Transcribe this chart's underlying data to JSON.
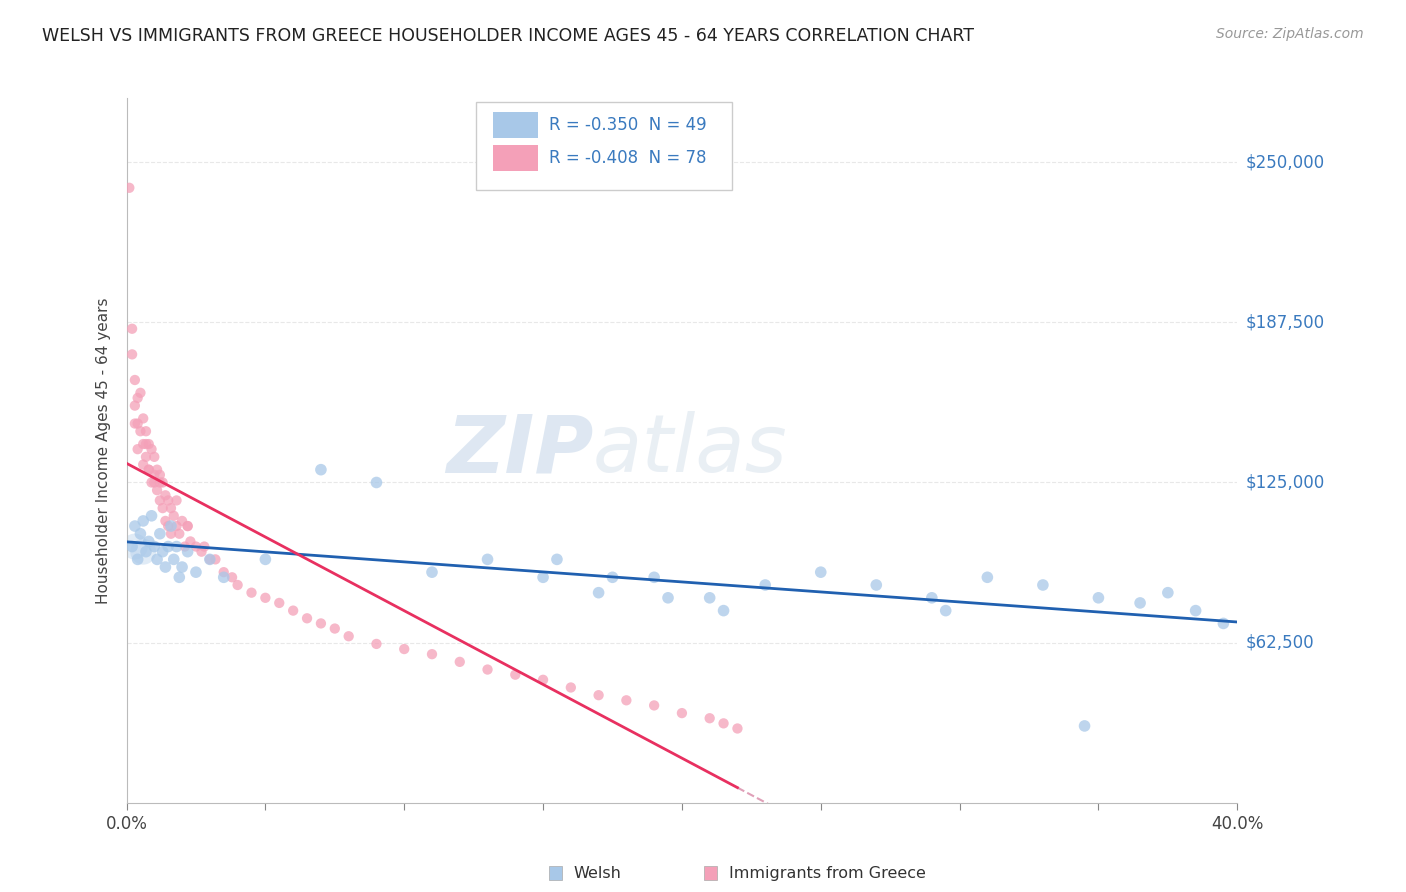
{
  "title": "WELSH VS IMMIGRANTS FROM GREECE HOUSEHOLDER INCOME AGES 45 - 64 YEARS CORRELATION CHART",
  "source": "Source: ZipAtlas.com",
  "ylabel": "Householder Income Ages 45 - 64 years",
  "ytick_labels": [
    "$62,500",
    "$125,000",
    "$187,500",
    "$250,000"
  ],
  "ytick_values": [
    62500,
    125000,
    187500,
    250000
  ],
  "legend_welsh": "R = -0.350  N = 49",
  "legend_greece": "R = -0.408  N = 78",
  "legend_label_welsh": "Welsh",
  "legend_label_greece": "Immigrants from Greece",
  "welsh_color": "#a8c8e8",
  "greece_color": "#f4a0b8",
  "welsh_line_color": "#2060b0",
  "greece_line_color": "#e83060",
  "trend_ext_color": "#e0a0b8",
  "xmin": 0.0,
  "xmax": 0.4,
  "ymin": 0,
  "ymax": 275000,
  "watermark_zip": "ZIP",
  "watermark_atlas": "atlas",
  "background_color": "#ffffff",
  "grid_color": "#e8e8e8",
  "welsh_x": [
    0.002,
    0.003,
    0.004,
    0.005,
    0.006,
    0.007,
    0.008,
    0.009,
    0.01,
    0.011,
    0.012,
    0.013,
    0.014,
    0.015,
    0.016,
    0.017,
    0.018,
    0.019,
    0.02,
    0.022,
    0.025,
    0.03,
    0.035,
    0.05,
    0.07,
    0.09,
    0.11,
    0.13,
    0.15,
    0.17,
    0.19,
    0.21,
    0.23,
    0.25,
    0.27,
    0.29,
    0.31,
    0.33,
    0.35,
    0.365,
    0.375,
    0.385,
    0.395,
    0.155,
    0.175,
    0.195,
    0.215,
    0.295,
    0.345
  ],
  "welsh_y": [
    100000,
    108000,
    95000,
    105000,
    110000,
    98000,
    102000,
    112000,
    100000,
    95000,
    105000,
    98000,
    92000,
    100000,
    108000,
    95000,
    100000,
    88000,
    92000,
    98000,
    90000,
    95000,
    88000,
    95000,
    130000,
    125000,
    90000,
    95000,
    88000,
    82000,
    88000,
    80000,
    85000,
    90000,
    85000,
    80000,
    88000,
    85000,
    80000,
    78000,
    82000,
    75000,
    70000,
    95000,
    88000,
    80000,
    75000,
    75000,
    30000
  ],
  "greece_x": [
    0.001,
    0.002,
    0.002,
    0.003,
    0.003,
    0.004,
    0.004,
    0.005,
    0.005,
    0.006,
    0.006,
    0.007,
    0.007,
    0.008,
    0.008,
    0.009,
    0.009,
    0.01,
    0.01,
    0.011,
    0.011,
    0.012,
    0.012,
    0.013,
    0.013,
    0.014,
    0.014,
    0.015,
    0.015,
    0.016,
    0.016,
    0.017,
    0.018,
    0.019,
    0.02,
    0.021,
    0.022,
    0.023,
    0.025,
    0.027,
    0.03,
    0.035,
    0.038,
    0.04,
    0.045,
    0.05,
    0.055,
    0.06,
    0.065,
    0.07,
    0.075,
    0.08,
    0.09,
    0.1,
    0.11,
    0.12,
    0.13,
    0.14,
    0.15,
    0.16,
    0.17,
    0.18,
    0.19,
    0.2,
    0.21,
    0.215,
    0.22,
    0.01,
    0.008,
    0.006,
    0.004,
    0.003,
    0.007,
    0.012,
    0.018,
    0.022,
    0.028,
    0.032
  ],
  "greece_y": [
    240000,
    175000,
    185000,
    165000,
    155000,
    158000,
    148000,
    160000,
    145000,
    150000,
    140000,
    145000,
    135000,
    140000,
    130000,
    138000,
    125000,
    135000,
    128000,
    130000,
    122000,
    128000,
    118000,
    125000,
    115000,
    120000,
    110000,
    118000,
    108000,
    115000,
    105000,
    112000,
    108000,
    105000,
    110000,
    100000,
    108000,
    102000,
    100000,
    98000,
    95000,
    90000,
    88000,
    85000,
    82000,
    80000,
    78000,
    75000,
    72000,
    70000,
    68000,
    65000,
    62000,
    60000,
    58000,
    55000,
    52000,
    50000,
    48000,
    45000,
    42000,
    40000,
    38000,
    35000,
    33000,
    31000,
    29000,
    125000,
    130000,
    132000,
    138000,
    148000,
    140000,
    125000,
    118000,
    108000,
    100000,
    95000
  ]
}
